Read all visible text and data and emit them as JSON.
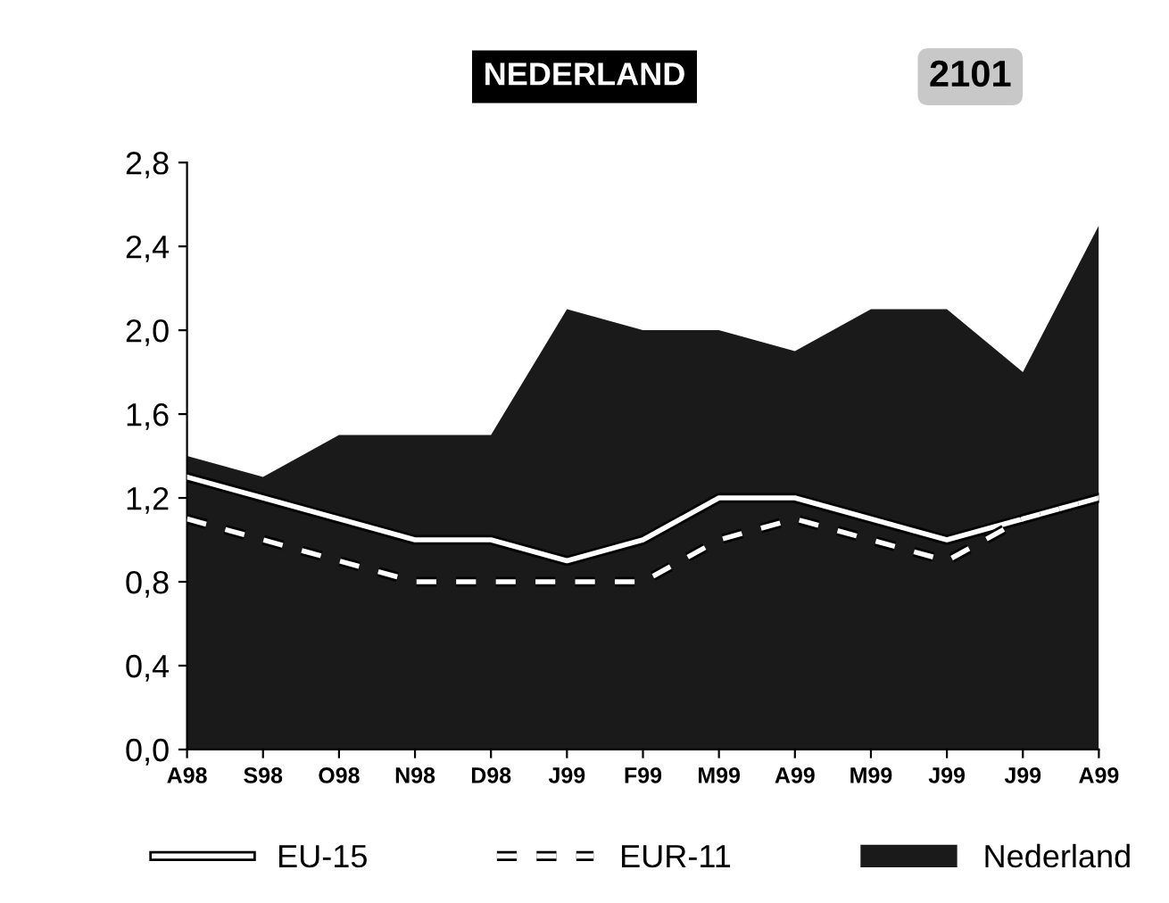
{
  "chart_data": {
    "type": "line",
    "title": "NEDERLAND",
    "annotations": [
      "2101"
    ],
    "categories": [
      "A98",
      "S98",
      "O98",
      "N98",
      "D98",
      "J99",
      "F99",
      "M99",
      "A99",
      "M99",
      "J99",
      "J99",
      "A99"
    ],
    "series": [
      {
        "name": "EU-15",
        "color": "#ffffff",
        "line_style": "solid",
        "values": [
          1.3,
          1.2,
          1.1,
          1.0,
          1.0,
          0.9,
          1.0,
          1.2,
          1.2,
          1.1,
          1.0,
          1.1,
          1.2
        ]
      },
      {
        "name": "EUR-11",
        "color": "#ffffff",
        "line_style": "dashed",
        "values": [
          1.1,
          1.0,
          0.9,
          0.8,
          0.8,
          0.8,
          0.8,
          1.0,
          1.1,
          1.0,
          0.9,
          1.1,
          1.2
        ]
      },
      {
        "name": "Nederland",
        "type": "area",
        "color": "#1a1a1a",
        "values": [
          1.4,
          1.3,
          1.5,
          1.5,
          1.5,
          2.1,
          2.0,
          2.0,
          1.9,
          2.1,
          2.1,
          1.8,
          2.5
        ]
      }
    ],
    "ylim": [
      0,
      2.8
    ],
    "yticks": [
      {
        "value": 0,
        "label": "0,0"
      },
      {
        "value": 0.4,
        "label": "0,4"
      },
      {
        "value": 0.8,
        "label": "0,8"
      },
      {
        "value": 1.2,
        "label": "1,2"
      },
      {
        "value": 1.6,
        "label": "1,6"
      },
      {
        "value": 2.0,
        "label": "2,0"
      },
      {
        "value": 2.4,
        "label": "2,4"
      },
      {
        "value": 2.8,
        "label": "2,8"
      }
    ],
    "grid": false,
    "legend": "bottom",
    "marker": "none"
  }
}
